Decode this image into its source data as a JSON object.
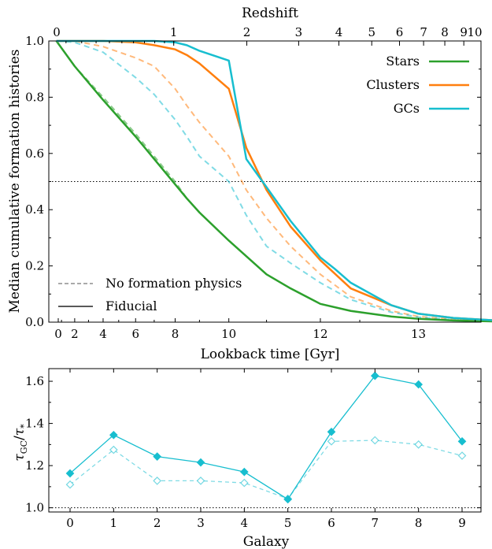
{
  "colors": {
    "stars": "#2ca02c",
    "clusters": "#ff7f0e",
    "gcs": "#17becf",
    "axis": "#000000",
    "ref_line": "#000000"
  },
  "chart_data": [
    {
      "type": "line",
      "ylabel": "Median cumulative formation histories",
      "xlabel": "Lookback time [Gyr]",
      "top_xlabel": "Redshift",
      "x_tick_labels": [
        "0",
        "2",
        "4",
        "6",
        "8",
        "10",
        "12",
        "13"
      ],
      "y_tick_labels": [
        "0.0",
        "0.2",
        "0.4",
        "0.6",
        "0.8",
        "1.0"
      ],
      "top_tick_labels": [
        "0",
        "1",
        "2",
        "3",
        "4",
        "5",
        "6",
        "7",
        "8",
        "9",
        "10"
      ],
      "ylim": [
        0.0,
        1.0
      ],
      "x_scale": "nonlinear (log of 1+z)",
      "reference_line": {
        "y": 0.5,
        "style": "dotted"
      },
      "legend_top": {
        "placement": "top-right",
        "entries": [
          "Stars",
          "Clusters",
          "GCs"
        ]
      },
      "legend_bottom": {
        "placement": "bottom-left",
        "entries": [
          "No formation physics",
          "Fiducial"
        ]
      },
      "series": [
        {
          "name": "Stars",
          "key": "stars",
          "style": "solid",
          "x": [
            0.6,
            2,
            4,
            6,
            7,
            8,
            8.5,
            9,
            10,
            11,
            11.5,
            12,
            12.4,
            12.8,
            13.0,
            13.2,
            13.4,
            13.6
          ],
          "y": [
            1.0,
            0.91,
            0.79,
            0.66,
            0.58,
            0.49,
            0.44,
            0.39,
            0.29,
            0.17,
            0.12,
            0.065,
            0.04,
            0.02,
            0.012,
            0.006,
            0.002,
            0.0
          ]
        },
        {
          "name": "Clusters",
          "key": "clusters",
          "style": "solid",
          "x": [
            0.6,
            2,
            4,
            6,
            7,
            8,
            8.5,
            9,
            10,
            10.5,
            11,
            11.5,
            12,
            12.4,
            12.8,
            13.0,
            13.2,
            13.4,
            13.6
          ],
          "y": [
            1.0,
            1.0,
            1.0,
            0.995,
            0.985,
            0.97,
            0.95,
            0.92,
            0.83,
            0.62,
            0.47,
            0.34,
            0.22,
            0.12,
            0.06,
            0.03,
            0.015,
            0.005,
            0.0
          ]
        },
        {
          "name": "GCs",
          "key": "gcs",
          "style": "solid",
          "x": [
            0.6,
            2,
            4,
            6,
            7,
            8,
            8.5,
            9,
            10,
            10.5,
            11,
            11.5,
            12,
            12.2,
            12.4,
            12.8,
            13.0,
            13.2,
            13.4,
            13.6
          ],
          "y": [
            1.0,
            1.0,
            1.0,
            1.0,
            1.0,
            0.995,
            0.985,
            0.965,
            0.93,
            0.58,
            0.48,
            0.36,
            0.23,
            0.19,
            0.14,
            0.06,
            0.03,
            0.015,
            0.005,
            0.0
          ]
        },
        {
          "name": "Stars",
          "key": "stars",
          "style": "dashed",
          "faded": true,
          "x": [
            0.6,
            2,
            4,
            6,
            7,
            8,
            8.5,
            9,
            10,
            11,
            11.5,
            12,
            12.4,
            12.8,
            13.0,
            13.2,
            13.4,
            13.6
          ],
          "y": [
            1.0,
            0.91,
            0.8,
            0.67,
            0.59,
            0.5,
            0.44,
            0.39,
            0.29,
            0.17,
            0.12,
            0.065,
            0.04,
            0.02,
            0.012,
            0.006,
            0.002,
            0.0
          ]
        },
        {
          "name": "Clusters",
          "key": "clusters",
          "style": "dashed",
          "faded": true,
          "x": [
            0.6,
            2,
            4,
            6,
            7,
            8,
            8.5,
            9,
            10,
            10.5,
            11,
            11.5,
            12,
            12.4,
            12.8,
            13.0,
            13.2,
            13.4,
            13.6
          ],
          "y": [
            1.0,
            1.0,
            0.98,
            0.94,
            0.91,
            0.83,
            0.77,
            0.71,
            0.59,
            0.47,
            0.37,
            0.27,
            0.17,
            0.09,
            0.04,
            0.02,
            0.01,
            0.004,
            0.0
          ]
        },
        {
          "name": "GCs",
          "key": "gcs",
          "style": "dashed",
          "faded": true,
          "x": [
            0.6,
            2,
            4,
            6,
            7,
            8,
            8.5,
            9,
            10,
            10.5,
            11,
            11.5,
            12,
            12.4,
            12.8,
            13.0,
            13.2,
            13.4,
            13.6
          ],
          "y": [
            1.0,
            0.995,
            0.96,
            0.87,
            0.81,
            0.72,
            0.66,
            0.59,
            0.5,
            0.38,
            0.27,
            0.21,
            0.14,
            0.08,
            0.035,
            0.018,
            0.008,
            0.003,
            0.0
          ]
        }
      ]
    },
    {
      "type": "line",
      "xlabel": "Galaxy",
      "ylabel": "τ_GC/τ_*",
      "x_tick_labels": [
        "0",
        "1",
        "2",
        "3",
        "4",
        "5",
        "6",
        "7",
        "8",
        "9"
      ],
      "y_tick_labels": [
        "1.0",
        "1.2",
        "1.4",
        "1.6"
      ],
      "ylim": [
        0.98,
        1.66
      ],
      "reference_line": {
        "y": 1.0,
        "style": "dotted"
      },
      "series": [
        {
          "key": "gcs",
          "style": "solid",
          "marker": "filled-diamond",
          "x": [
            0,
            1,
            2,
            3,
            4,
            5,
            6,
            7,
            8,
            9
          ],
          "y": [
            1.163,
            1.345,
            1.243,
            1.215,
            1.17,
            1.04,
            1.36,
            1.626,
            1.585,
            1.315
          ]
        },
        {
          "key": "gcs",
          "style": "dashed",
          "faded": true,
          "marker": "open-diamond",
          "x": [
            0,
            1,
            2,
            3,
            4,
            5,
            6,
            7,
            8,
            9
          ],
          "y": [
            1.11,
            1.275,
            1.128,
            1.128,
            1.118,
            1.043,
            1.315,
            1.32,
            1.3,
            1.247
          ]
        }
      ]
    }
  ]
}
